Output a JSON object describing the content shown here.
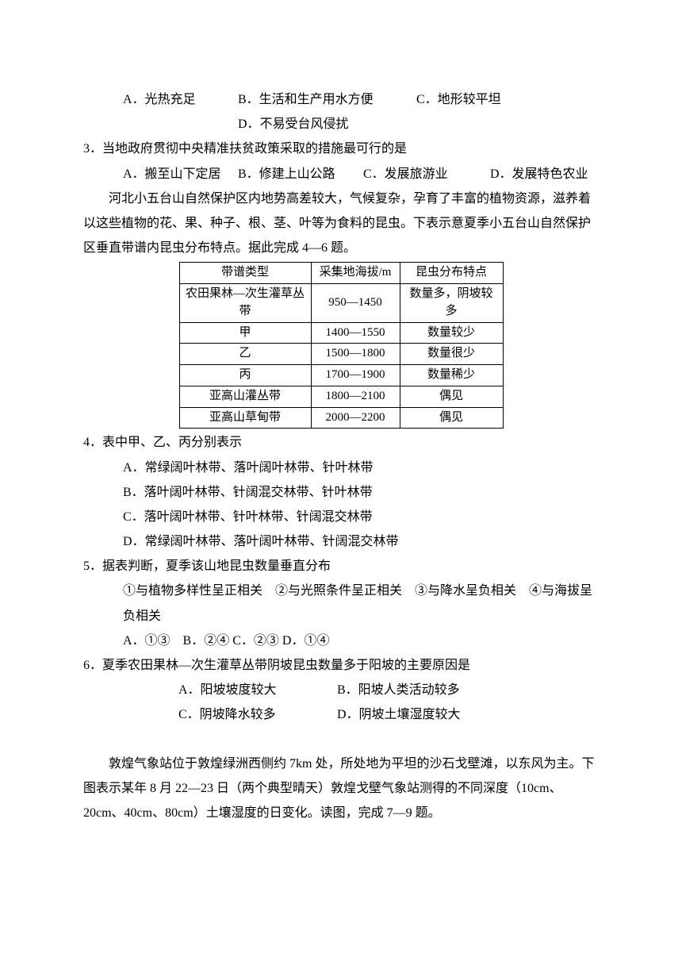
{
  "q_intro_opts": {
    "a": "A．光热充足",
    "b": "B．生活和生产用水方便",
    "c": "C．地形较平坦",
    "d": "D．不易受台风侵扰"
  },
  "q3": {
    "stem": "3．当地政府贯彻中央精准扶贫政策采取的措施最可行的是",
    "a": "A．搬至山下定居",
    "b": "B．修建上山公路",
    "c": "C．发展旅游业",
    "d": "D．发展特色农业"
  },
  "passage1": "河北小五台山自然保护区内地势高差较大，气候复杂，孕育了丰富的植物资源，滋养着以这些植物的花、果、种子、根、茎、叶等为食料的昆虫。下表示意夏季小五台山自然保护区垂直带谱内昆虫分布特点。据此完成 4—6 题。",
  "table": {
    "header": [
      "带谱类型",
      "采集地海拔/m",
      "昆虫分布特点"
    ],
    "rows": [
      [
        "农田果林—次生灌草丛带",
        "950—1450",
        "数量多，阴坡较多"
      ],
      [
        "甲",
        "1400—1550",
        "数量较少"
      ],
      [
        "乙",
        "1500—1800",
        "数量很少"
      ],
      [
        "丙",
        "1700—1900",
        "数量稀少"
      ],
      [
        "亚高山灌丛带",
        "1800—2100",
        "偶见"
      ],
      [
        "亚高山草甸带",
        "2000—2200",
        "偶见"
      ]
    ]
  },
  "q4": {
    "stem": "4．表中甲、乙、丙分别表示",
    "a": "A．常绿阔叶林带、落叶阔叶林带、针叶林带",
    "b": "B．落叶阔叶林带、针阔混交林带、针叶林带",
    "c": "C．落叶阔叶林带、针叶林带、针阔混交林带",
    "d": "D．常绿阔叶林带、落叶阔叶林带、针阔混交林带"
  },
  "q5": {
    "stem": "5．据表判断，夏季该山地昆虫数量垂直分布",
    "items": "①与植物多样性呈正相关　②与光照条件呈正相关　③与降水呈负相关　④与海拔呈负相关",
    "opts": "A．①③　B．②④ C．②③ D．①④"
  },
  "q6": {
    "stem": "6．夏季农田果林—次生灌草丛带阴坡昆虫数量多于阳坡的主要原因是",
    "a": "A．阳坡坡度较大",
    "b": "B．阳坡人类活动较多",
    "c": "C．阴坡降水较多",
    "d": "D．阴坡土壤湿度较大"
  },
  "passage2": "敦煌气象站位于敦煌绿洲西侧约 7km 处，所处地为平坦的沙石戈壁滩，以东风为主。下图表示某年 8 月 22—23 日（两个典型晴天）敦煌戈壁气象站测得的不同深度（10cm、20cm、40cm、80cm）土壤湿度的日变化。读图，完成 7—9 题。"
}
